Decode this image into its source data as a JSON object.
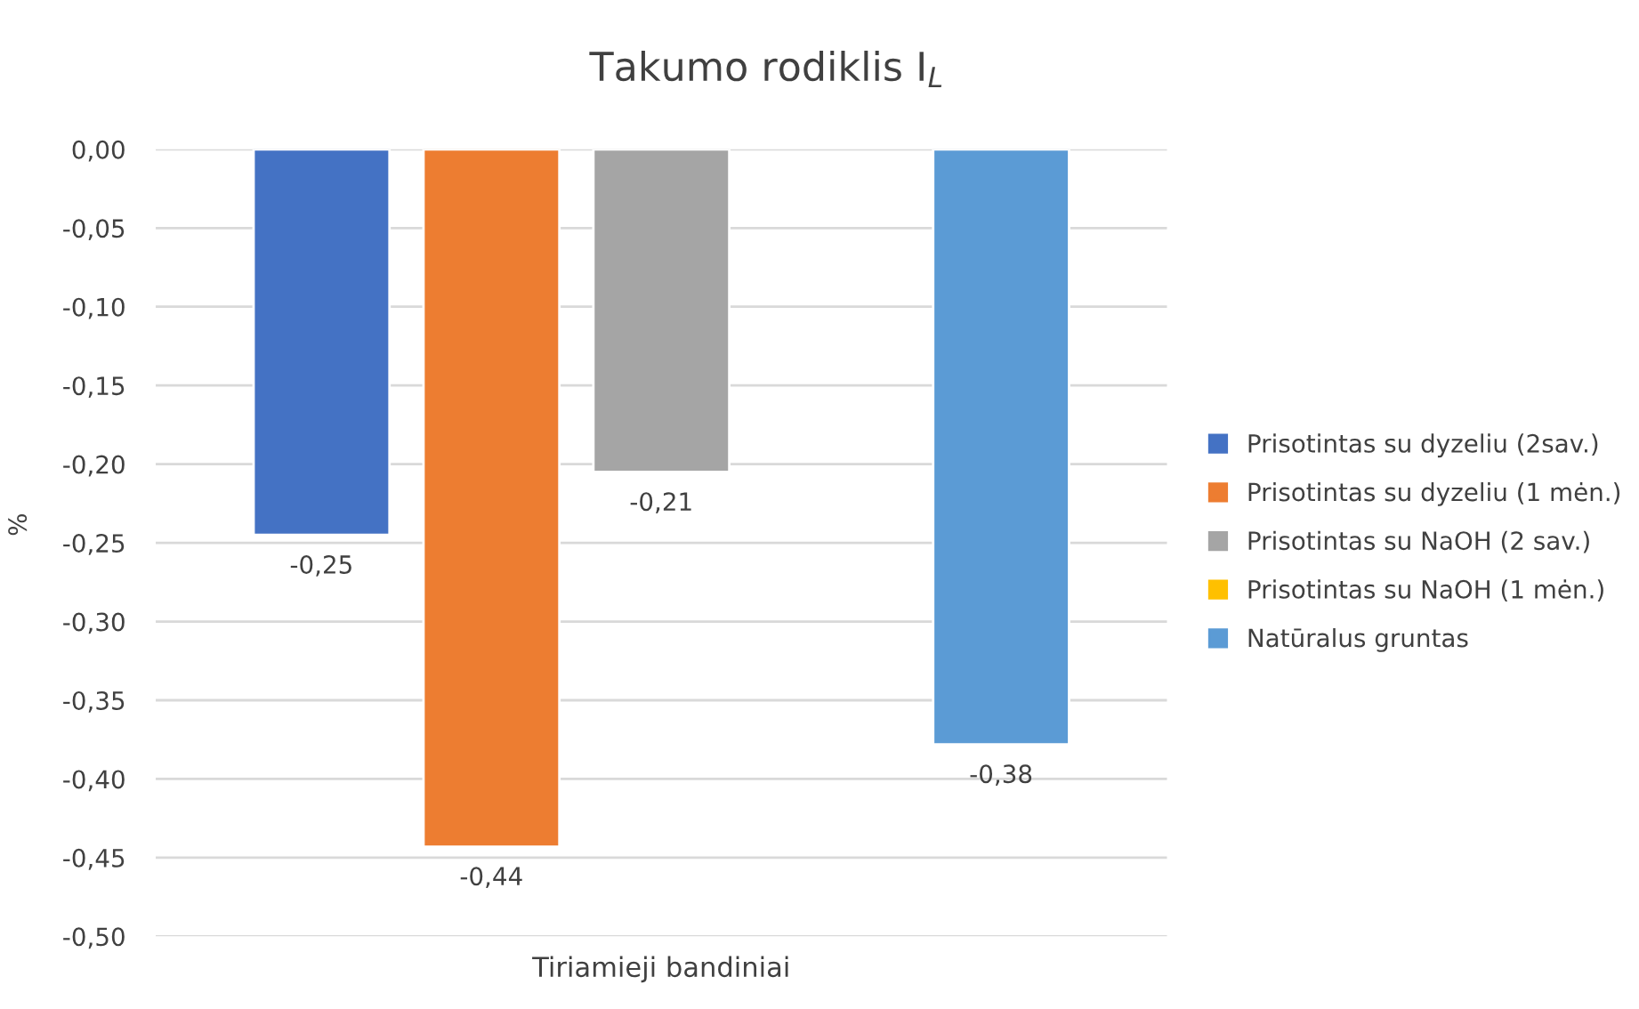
{
  "chart_data": {
    "type": "bar",
    "title": "Takumo rodiklis I$_{L}$",
    "ylabel": "%",
    "categories": [
      "Tiriamieji bandiniai"
    ],
    "series": [
      {
        "name": "Prisotintas su dyzeliu (2sav.)",
        "color": "#4472c4",
        "values": [
          -0.245
        ],
        "value_labels": [
          "-0,25"
        ]
      },
      {
        "name": "Prisotintas su dyzeliu (1 mėn.)",
        "color": "#ed7d31",
        "values": [
          -0.443
        ],
        "value_labels": [
          "-0,44"
        ]
      },
      {
        "name": "Prisotintas su NaOH (2 sav.)",
        "color": "#a5a5a5",
        "values": [
          -0.205
        ],
        "value_labels": [
          "-0,21"
        ]
      },
      {
        "name": "Prisotintas su NaOH (1 mėn.)",
        "color": "#ffc000",
        "values": [
          null
        ],
        "value_labels": [
          null
        ]
      },
      {
        "name": "Natūralus gruntas",
        "color": "#5b9bd5",
        "values": [
          -0.378
        ],
        "value_labels": [
          "-0,38"
        ]
      }
    ],
    "ylim": [
      -0.5,
      0
    ],
    "yticks": [
      {
        "value": 0,
        "label": "0,00"
      },
      {
        "value": -0.05,
        "label": "-0,05"
      },
      {
        "value": -0.1,
        "label": "-0,10"
      },
      {
        "value": -0.15,
        "label": "-0,15"
      },
      {
        "value": -0.2,
        "label": "-0,20"
      },
      {
        "value": -0.25,
        "label": "-0,25"
      },
      {
        "value": -0.3,
        "label": "-0,30"
      },
      {
        "value": -0.35,
        "label": "-0,35"
      },
      {
        "value": -0.4,
        "label": "-0,40"
      },
      {
        "value": -0.45,
        "label": "-0,45"
      },
      {
        "value": -0.5,
        "label": "-0,50"
      }
    ],
    "grid": "y",
    "legend": "right"
  }
}
